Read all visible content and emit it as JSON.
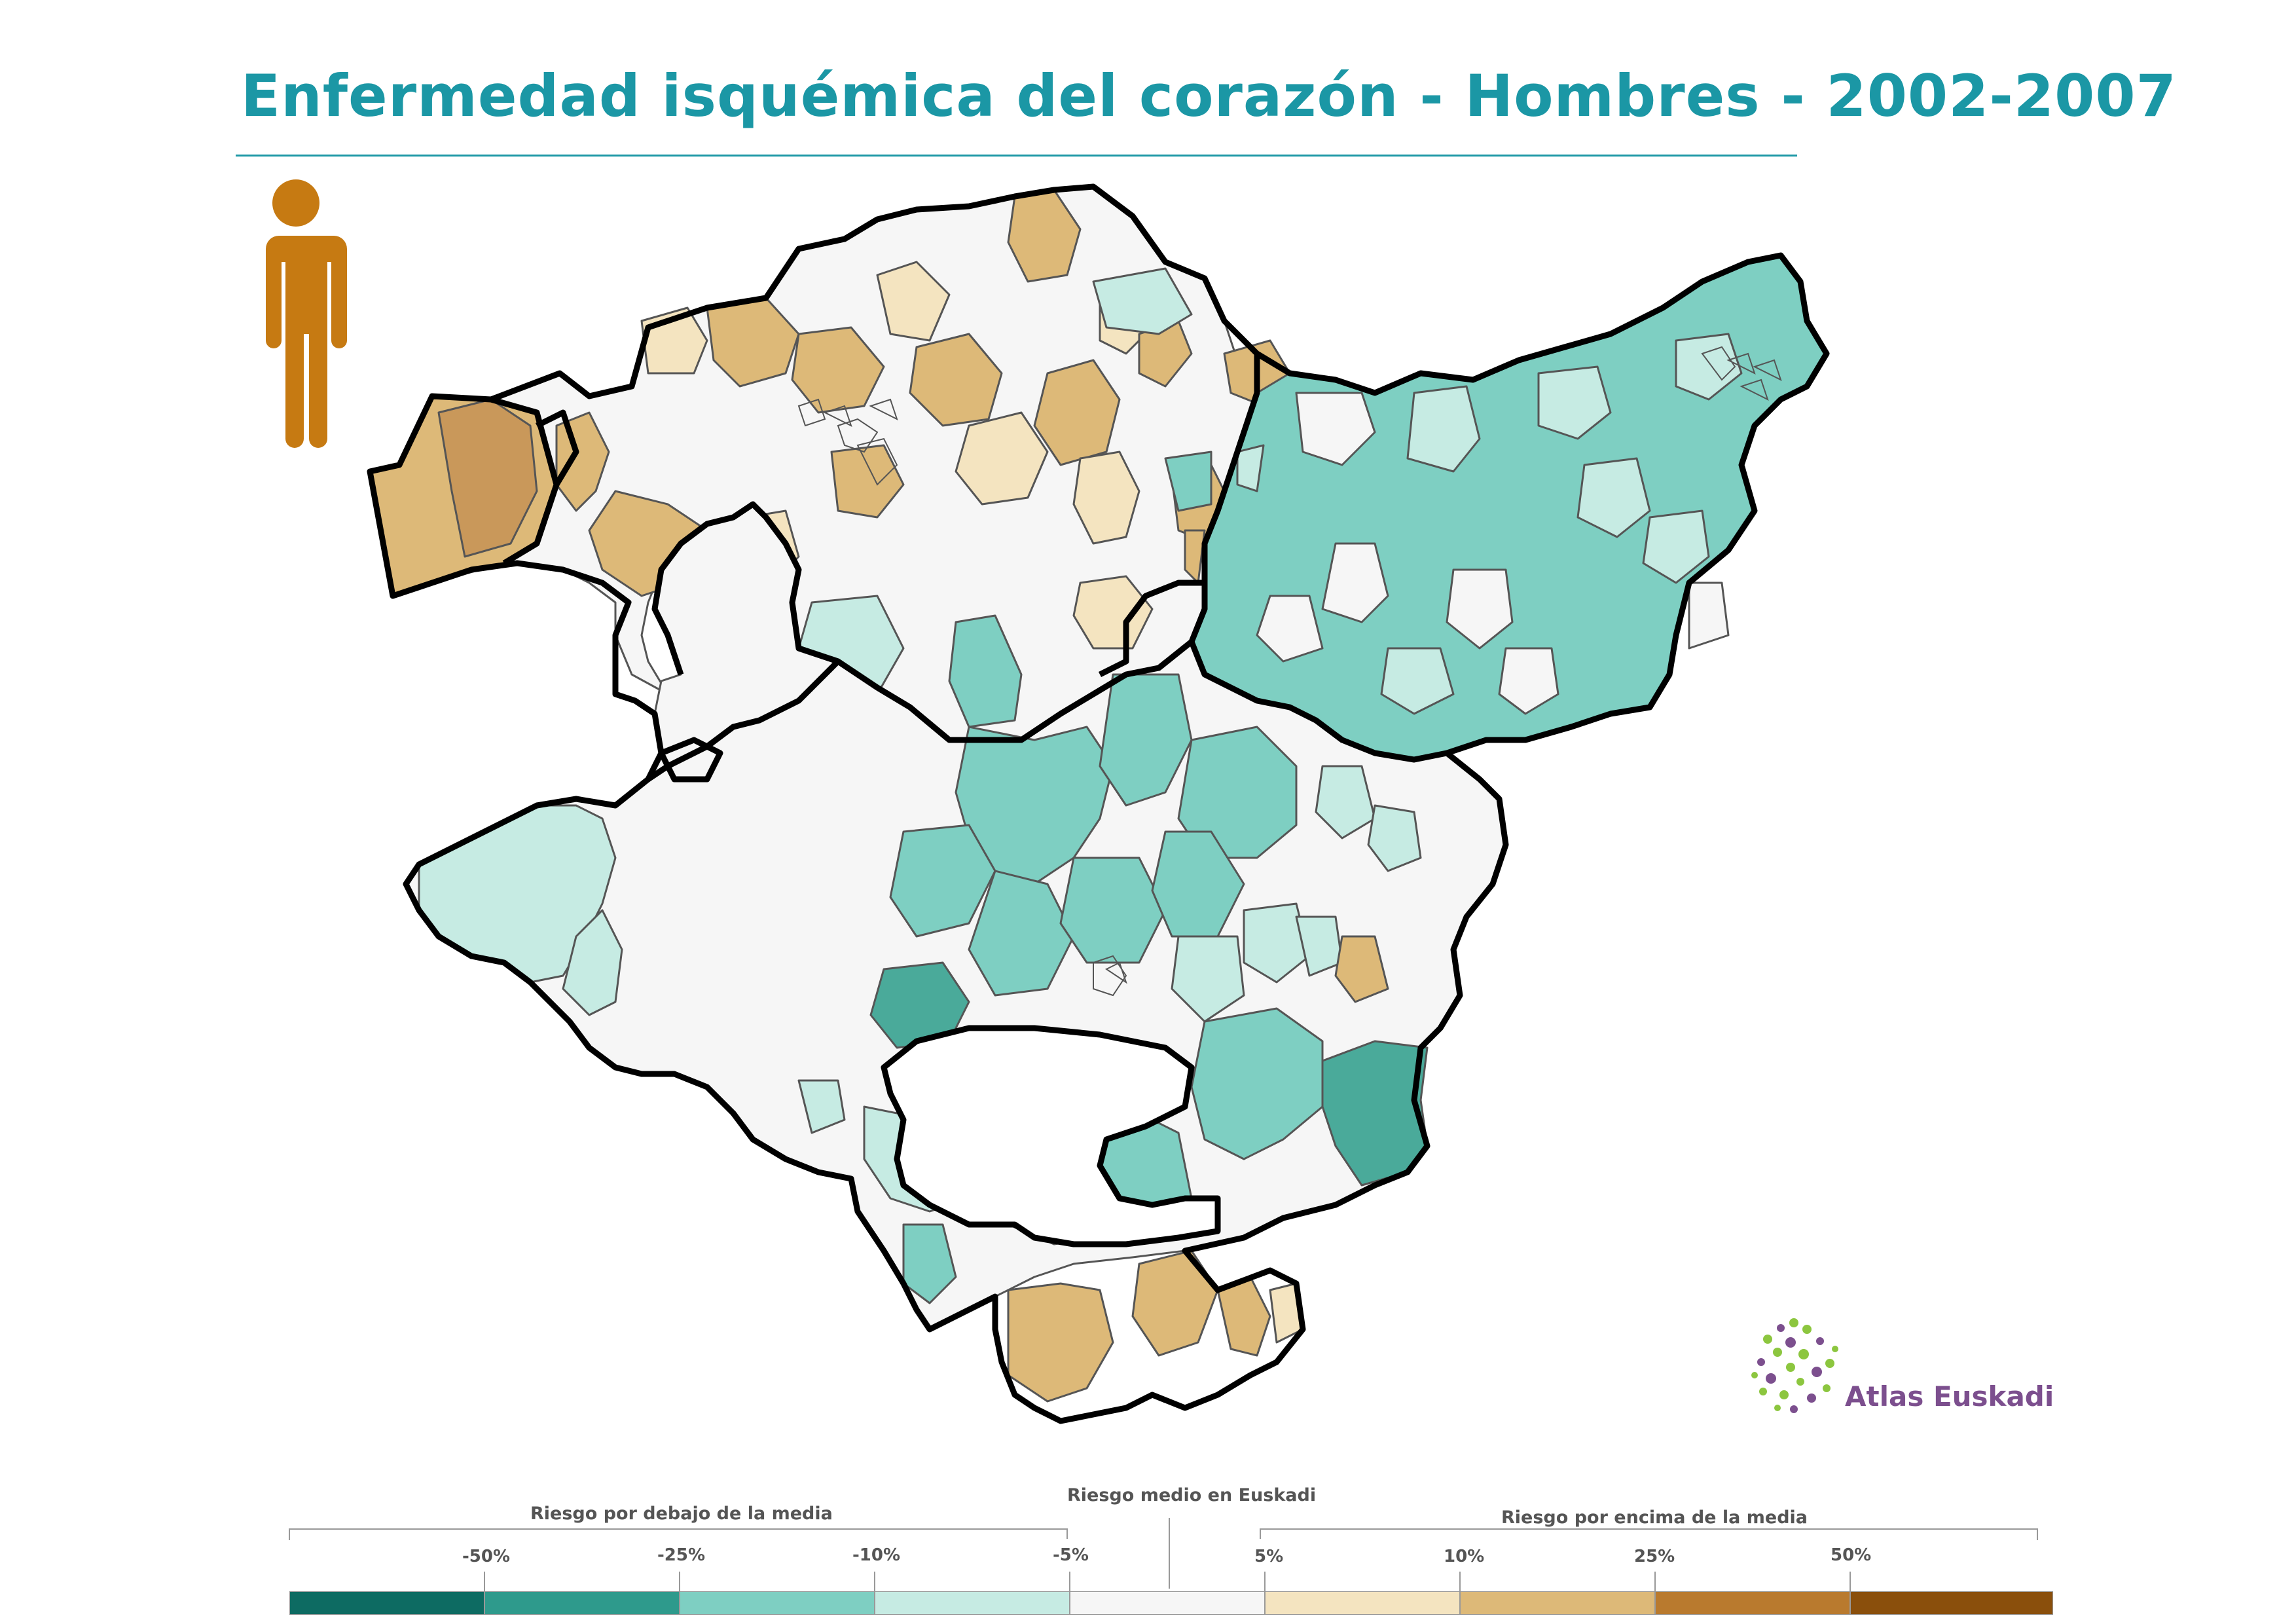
{
  "title": "Enfermedad isquémica del corazón - Hombres - 2002-2007",
  "icon": {
    "name": "male-person-icon",
    "color": "#c67a12"
  },
  "logo": {
    "text": "Atlas Euskadi",
    "icon": "dotted-globe-icon"
  },
  "legend": {
    "below_label": "Riesgo por debajo de la media",
    "average_label": "Riesgo medio en Euskadi",
    "above_label": "Riesgo por encima de la media",
    "ticks": [
      "-50%",
      "-25%",
      "-10%",
      "-5%",
      "5%",
      "10%",
      "25%",
      "50%"
    ],
    "colors": [
      "#0d6b62",
      "#2e9a8c",
      "#7ecfc2",
      "#c6ebe3",
      "#f6f6f6",
      "#f4e4c0",
      "#ddb978",
      "#b97a2e",
      "#8a4f0c"
    ]
  },
  "map": {
    "outline_color": "#000000",
    "region_outline_color": "#555555"
  }
}
